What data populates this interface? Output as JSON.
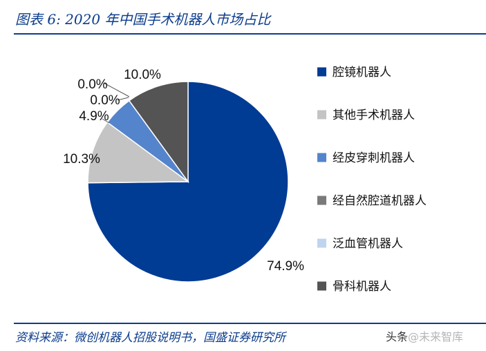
{
  "figure": {
    "title": "图表 6:  2020 年中国手术机器人市场占比",
    "source": "资料来源：微创机器人招股说明书，国盛证券研究所"
  },
  "watermark": {
    "prefix": "头条",
    "text": "@未来智库"
  },
  "chart_data": {
    "type": "pie",
    "categories": [
      "腔镜机器人",
      "其他手术机器人",
      "经皮穿刺机器人",
      "经自然腔道机器人",
      "泛血管机器人",
      "骨科机器人"
    ],
    "values": [
      74.9,
      10.3,
      4.9,
      0.0,
      0.0,
      10.0
    ],
    "labels": [
      "74.9%",
      "10.3%",
      "4.9%",
      "0.0%",
      "0.0%",
      "10.0%"
    ],
    "colors": [
      "#003b94",
      "#c4c4c4",
      "#5484cc",
      "#7a7a7a",
      "#bfd4ee",
      "#545454"
    ],
    "legend": "right",
    "start": "12 o'clock",
    "direction": "clockwise"
  }
}
